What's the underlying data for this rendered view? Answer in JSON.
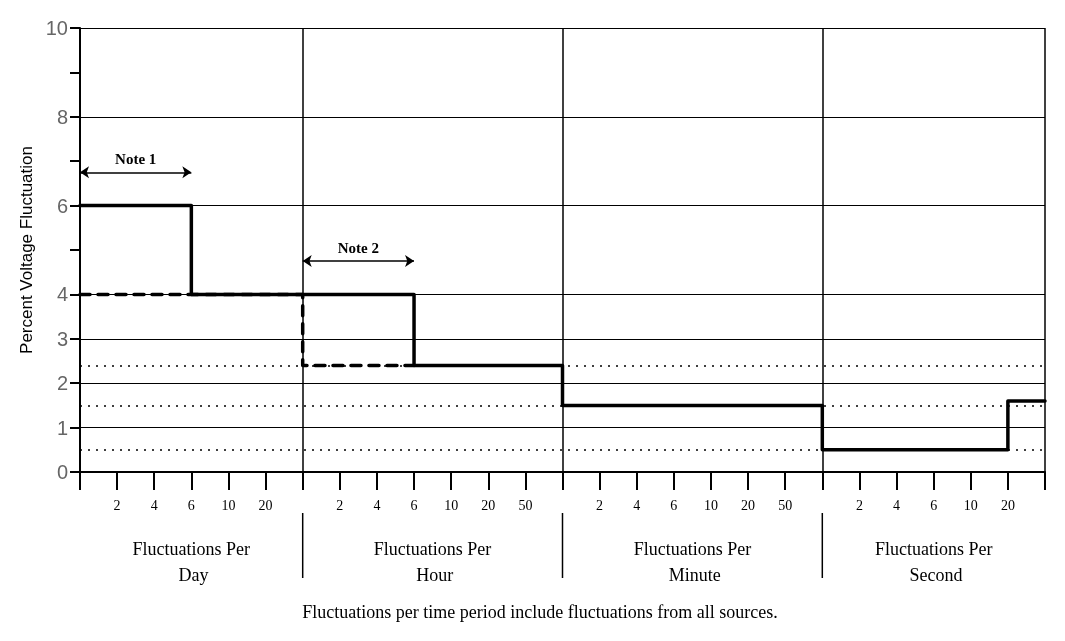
{
  "chart_data": {
    "type": "step",
    "ylabel": "Percent Voltage Fluctuation",
    "categories": [
      null,
      "2",
      "4",
      "6",
      "10",
      "20",
      null,
      "2",
      "4",
      "6",
      "10",
      "20",
      "50",
      null,
      "2",
      "4",
      "6",
      "10",
      "20",
      "50",
      null,
      "2",
      "4",
      "6",
      "10",
      "20",
      null
    ],
    "series": [
      {
        "color": "#000000",
        "line_style": "solid",
        "values": [
          6,
          6,
          6,
          4,
          4,
          4,
          4,
          4,
          4,
          2.4,
          2.4,
          2.4,
          2.4,
          1.5,
          1.5,
          1.5,
          1.5,
          1.5,
          1.5,
          1.5,
          0.5,
          0.5,
          0.5,
          0.5,
          0.5,
          1.6,
          1.6
        ]
      },
      {
        "color": "#000000",
        "line_style": "dashed",
        "values": [
          4,
          4,
          4,
          4,
          4,
          4,
          2.4,
          2.4,
          2.4,
          2.4,
          null,
          null,
          null,
          null,
          null,
          null,
          null,
          null,
          null,
          null,
          null,
          null,
          null,
          null,
          null,
          null,
          null
        ]
      }
    ],
    "ylim": [
      0,
      10
    ],
    "yticks": [
      0,
      1,
      2,
      3,
      4,
      {
        "value": 5,
        "label": null
      },
      6,
      {
        "value": 7,
        "label": null
      },
      8,
      {
        "value": 9,
        "label": null
      },
      10
    ],
    "ref_lines": [
      {
        "axis": "y",
        "value": 2.4,
        "color": "#000000",
        "line_style": "dotted"
      },
      {
        "axis": "y",
        "value": 1.5,
        "color": "#000000",
        "line_style": "dotted"
      },
      {
        "axis": "y",
        "value": 0.5,
        "color": "#000000",
        "line_style": "dotted"
      }
    ],
    "grid": true,
    "annotations": [
      "Note 1",
      "Note 2",
      "Fluctuations Per Day",
      "Fluctuations Per Hour",
      "Fluctuations Per Minute",
      "Fluctuations Per Second",
      "Fluctuations per time period include fluctuations from all sources."
    ]
  }
}
